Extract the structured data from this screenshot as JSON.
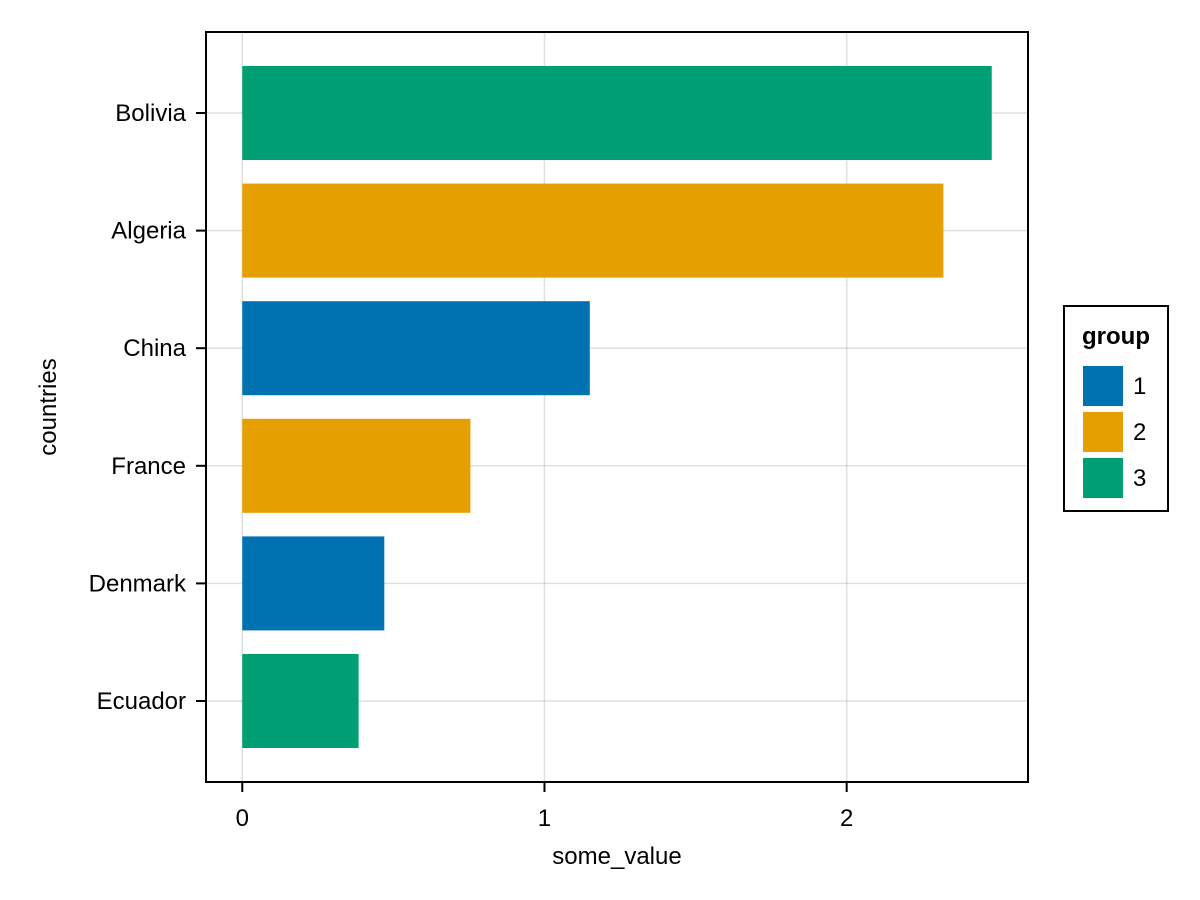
{
  "chart_data": {
    "type": "bar",
    "orientation": "horizontal",
    "categories": [
      "Bolivia",
      "Algeria",
      "China",
      "France",
      "Denmark",
      "Ecuador"
    ],
    "values": [
      2.48,
      2.32,
      1.15,
      0.755,
      0.47,
      0.385
    ],
    "groups": [
      "3",
      "2",
      "1",
      "2",
      "1",
      "3"
    ],
    "xlabel": "some_value",
    "ylabel": "countries",
    "xlim": [
      -0.12,
      2.6
    ],
    "xticks": [
      0,
      1,
      2
    ],
    "grid": true,
    "legend": {
      "title": "group",
      "placement": "right",
      "entries": [
        {
          "label": "1",
          "color": "#0072B2"
        },
        {
          "label": "2",
          "color": "#E69F00"
        },
        {
          "label": "3",
          "color": "#009E73"
        }
      ]
    }
  }
}
